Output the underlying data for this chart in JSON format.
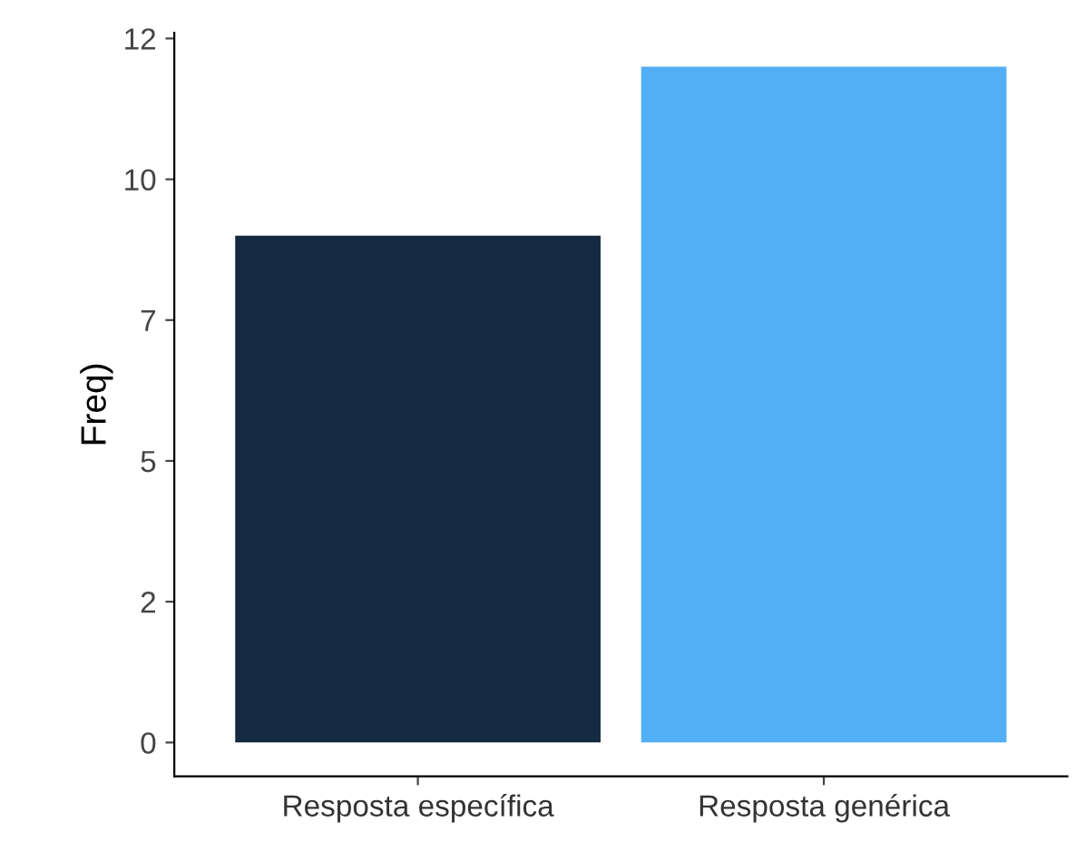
{
  "chart_data": {
    "type": "bar",
    "ylabel": "Freq)",
    "categories": [
      "Resposta específica",
      "Resposta genérica"
    ],
    "values": [
      9,
      12
    ],
    "colors": [
      "#152a42",
      "#52aef5"
    ],
    "ylim": [
      -0.6,
      12.6
    ],
    "yticks": [
      {
        "value": 0,
        "label": "0"
      },
      {
        "value": 2.5,
        "label": "2"
      },
      {
        "value": 5,
        "label": "5"
      },
      {
        "value": 7.5,
        "label": "7"
      },
      {
        "value": 10,
        "label": "10"
      },
      {
        "value": 12.5,
        "label": "12"
      }
    ],
    "grid": false,
    "legend": false
  }
}
